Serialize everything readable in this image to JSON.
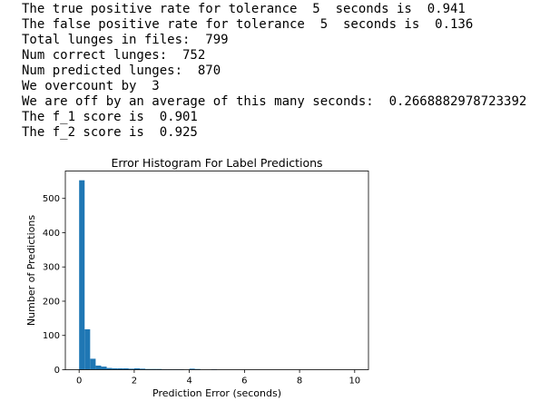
{
  "output": {
    "lines": [
      "The true positive rate for tolerance  5  seconds is  0.941",
      "The false positive rate for tolerance  5  seconds is  0.136",
      "Total lunges in files:  799",
      "Num correct lunges:  752",
      "Num predicted lunges:  870",
      "We overcount by  3",
      "We are off by an average of this many seconds:  0.2668882978723392",
      "The f_1 score is  0.901",
      "The f_2 score is  0.925"
    ]
  },
  "chart_data": {
    "type": "bar",
    "title": "Error Histogram For Label Predictions",
    "xlabel": "Prediction Error (seconds)",
    "ylabel": "Number of Predictions",
    "xlim": [
      -0.5,
      10.5
    ],
    "ylim": [
      0,
      580
    ],
    "xticks": [
      0,
      2,
      4,
      6,
      8,
      10
    ],
    "yticks": [
      0,
      100,
      200,
      300,
      400,
      500
    ],
    "bin_width": 0.2,
    "bin_starts": [
      0.0,
      0.2,
      0.4,
      0.6,
      0.8,
      1.0,
      1.2,
      1.4,
      1.6,
      1.8,
      2.0,
      2.2,
      2.4,
      2.6,
      2.8,
      3.0,
      3.2,
      3.4,
      3.6,
      3.8,
      4.0,
      4.2,
      4.4,
      4.6,
      4.8
    ],
    "values": [
      553,
      118,
      32,
      12,
      9,
      5,
      4,
      4,
      4,
      3,
      4,
      3,
      2,
      2,
      2,
      1,
      1,
      1,
      1,
      0,
      3,
      2,
      0,
      0,
      1
    ],
    "bar_color": "#1f77b4",
    "grid": false
  }
}
